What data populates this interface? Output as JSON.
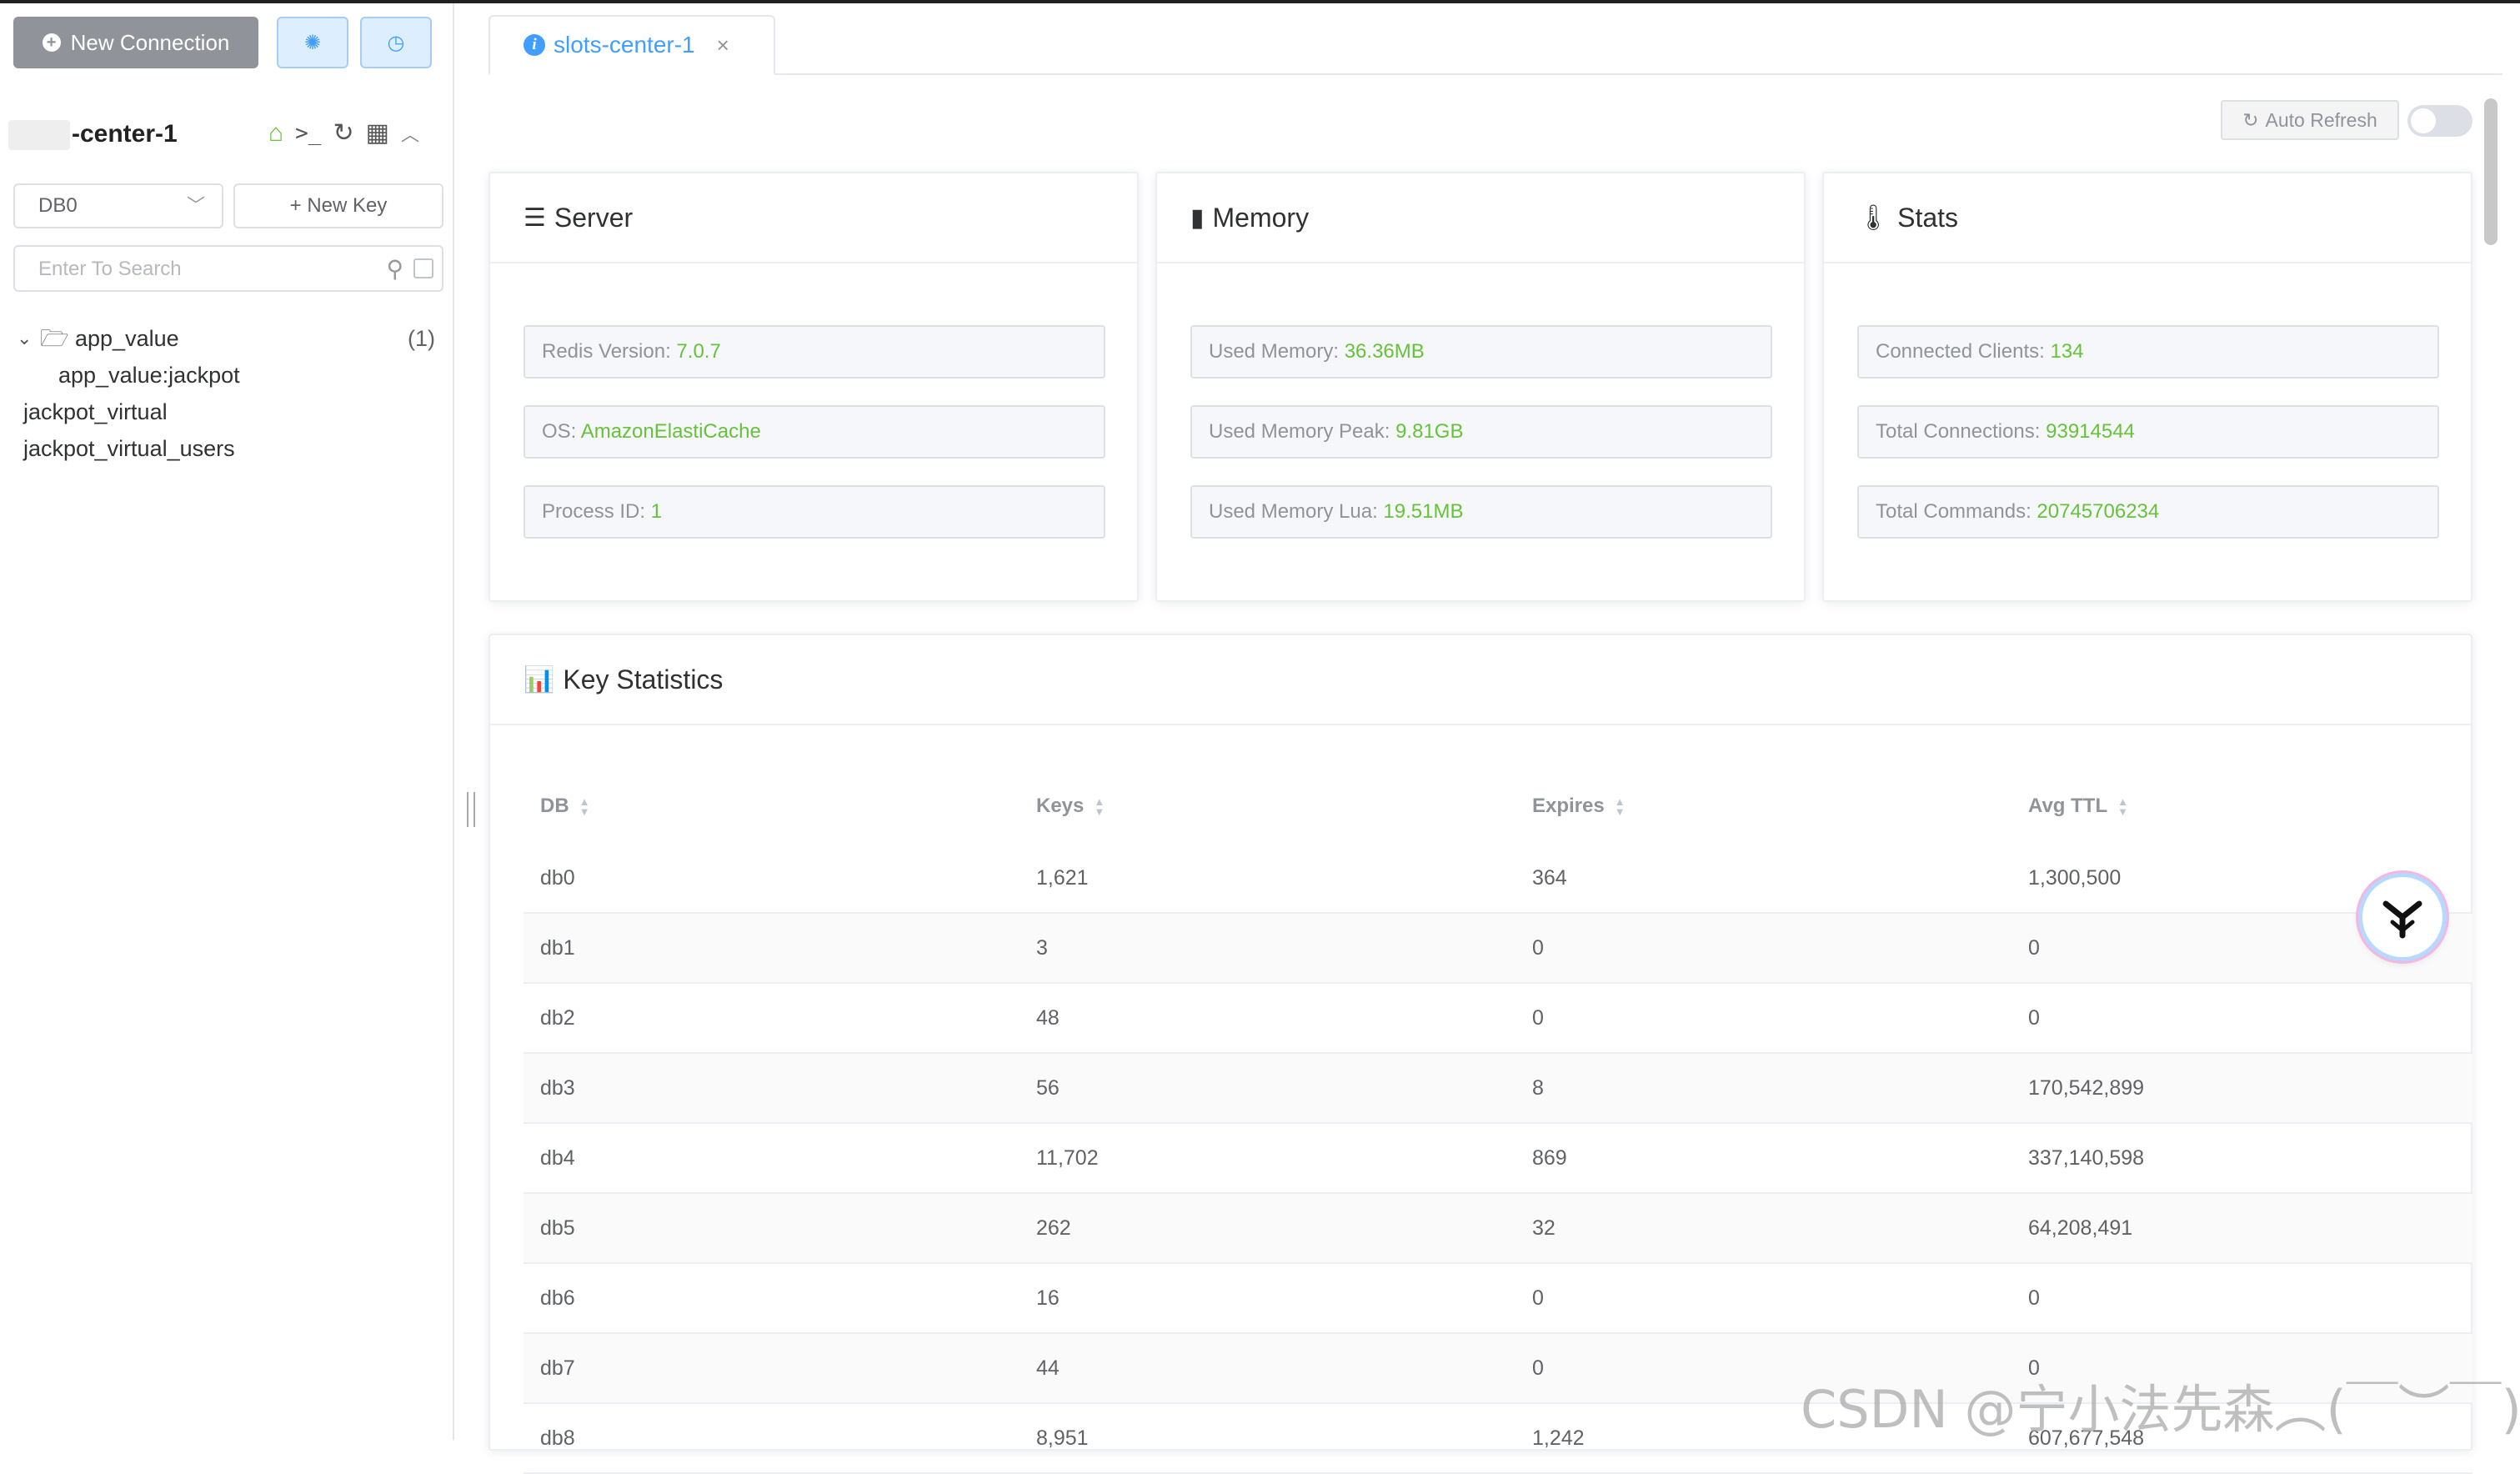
{
  "sidebar": {
    "new_connection_label": "New Connection",
    "connection_name": "-center-1",
    "db_select": "DB0",
    "new_key_label": "New Key",
    "search_placeholder": "Enter To Search",
    "tree": {
      "folder": {
        "label": "app_value",
        "count": "(1)",
        "children": [
          "app_value:jackpot"
        ]
      },
      "keys": [
        "jackpot_virtual",
        "jackpot_virtual_users"
      ]
    }
  },
  "tabs": [
    {
      "label": "slots-center-1",
      "close": "×"
    }
  ],
  "toolbar": {
    "auto_refresh_label": "Auto Refresh",
    "auto_refresh_on": false
  },
  "server": {
    "title": "Server",
    "fields": [
      {
        "label": "Redis Version: ",
        "value": "7.0.7"
      },
      {
        "label": "OS: ",
        "value": "AmazonElastiCache"
      },
      {
        "label": "Process ID: ",
        "value": "1"
      }
    ]
  },
  "memory": {
    "title": "Memory",
    "fields": [
      {
        "label": "Used Memory: ",
        "value": "36.36MB"
      },
      {
        "label": "Used Memory Peak: ",
        "value": "9.81GB"
      },
      {
        "label": "Used Memory Lua: ",
        "value": "19.51MB"
      }
    ]
  },
  "stats": {
    "title": "Stats",
    "fields": [
      {
        "label": "Connected Clients: ",
        "value": "134"
      },
      {
        "label": "Total Connections: ",
        "value": "93914544"
      },
      {
        "label": "Total Commands: ",
        "value": "20745706234"
      }
    ]
  },
  "key_statistics": {
    "title": "Key Statistics",
    "columns": [
      "DB",
      "Keys",
      "Expires",
      "Avg TTL"
    ],
    "rows": [
      [
        "db0",
        "1,621",
        "364",
        "1,300,500"
      ],
      [
        "db1",
        "3",
        "0",
        "0"
      ],
      [
        "db2",
        "48",
        "0",
        "0"
      ],
      [
        "db3",
        "56",
        "8",
        "170,542,899"
      ],
      [
        "db4",
        "11,702",
        "869",
        "337,140,598"
      ],
      [
        "db5",
        "262",
        "32",
        "64,208,491"
      ],
      [
        "db6",
        "16",
        "0",
        "0"
      ],
      [
        "db7",
        "44",
        "0",
        "0"
      ],
      [
        "db8",
        "8,951",
        "1,242",
        "607,677,548"
      ]
    ]
  },
  "watermark": "CSDN @宁小法先森︵(￣︶￣)︵",
  "colors": {
    "accent": "#409eff",
    "value_green": "#67c23a",
    "gray_button": "#909399"
  }
}
